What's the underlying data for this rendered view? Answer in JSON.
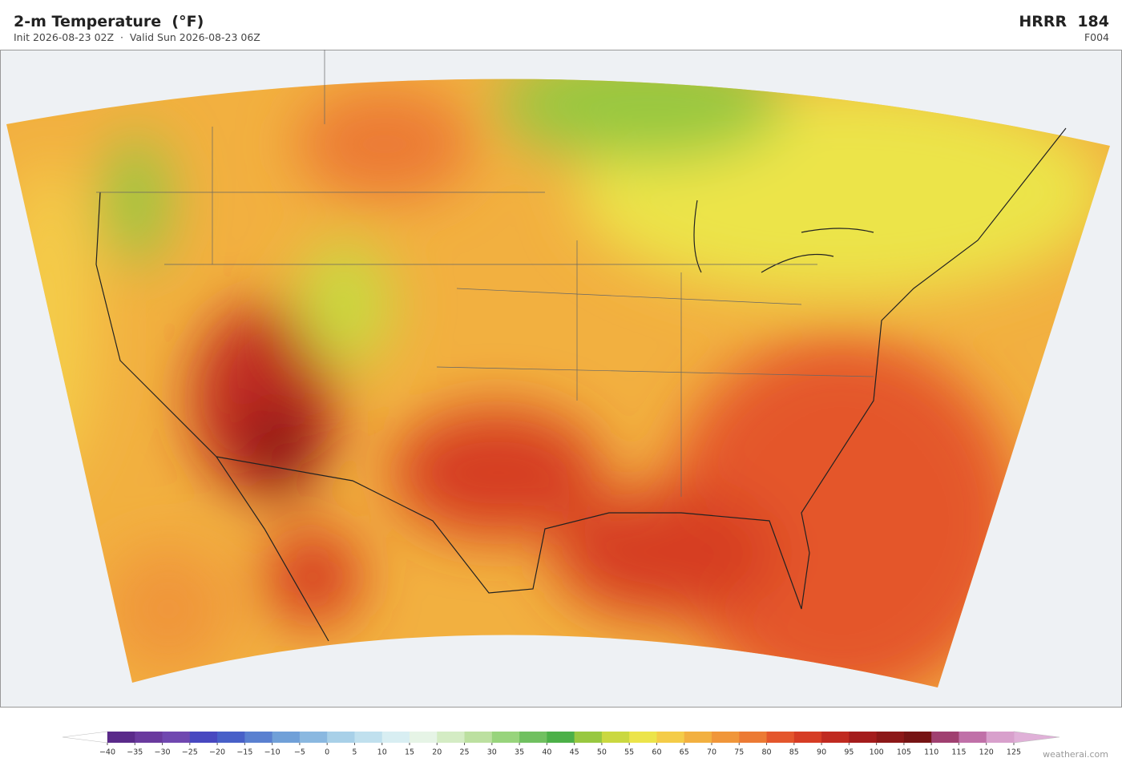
{
  "header": {
    "title": "2-m Temperature  (°F)",
    "subtitle": "Init 2026-08-23 02Z  ·  Valid Sun 2026-08-23 06Z",
    "model": "HRRR  184",
    "forecast_hour": "F004"
  },
  "colorbar": {
    "ticks": [
      {
        "value": -40,
        "label": "−40"
      },
      {
        "value": -35,
        "label": "−35"
      },
      {
        "value": -30,
        "label": "−30"
      },
      {
        "value": -25,
        "label": "−25"
      },
      {
        "value": -20,
        "label": "−20"
      },
      {
        "value": -15,
        "label": "−15"
      },
      {
        "value": -10,
        "label": "−10"
      },
      {
        "value": -5,
        "label": "−5"
      },
      0,
      5,
      10,
      15,
      20,
      25,
      30,
      35,
      40,
      45,
      50,
      55,
      60,
      65,
      70,
      75,
      80,
      85,
      90,
      95,
      100,
      105,
      110,
      115,
      120,
      125
    ],
    "colors": [
      "#5a2a8a",
      "#6a3a9e",
      "#7048b0",
      "#4848c0",
      "#4860c8",
      "#5a80d0",
      "#70a0d8",
      "#8ab8e0",
      "#a8d0e8",
      "#c0e0ee",
      "#d8eef2",
      "#e6f4e6",
      "#d4ecc4",
      "#bce0a0",
      "#98d47c",
      "#70c060",
      "#4cb048",
      "#98c840",
      "#cad840",
      "#ece44a",
      "#f4cc48",
      "#f2b040",
      "#f0963a",
      "#ec7a34",
      "#e4562c",
      "#d63c24",
      "#c02a20",
      "#a41c1c",
      "#8c1818",
      "#761414",
      "#a04070",
      "#c070a8",
      "#d8a0cc"
    ],
    "under_color": "#ffffff",
    "over_color": "#e0b0d8"
  },
  "footer": {
    "credit": "weatherai.com"
  }
}
